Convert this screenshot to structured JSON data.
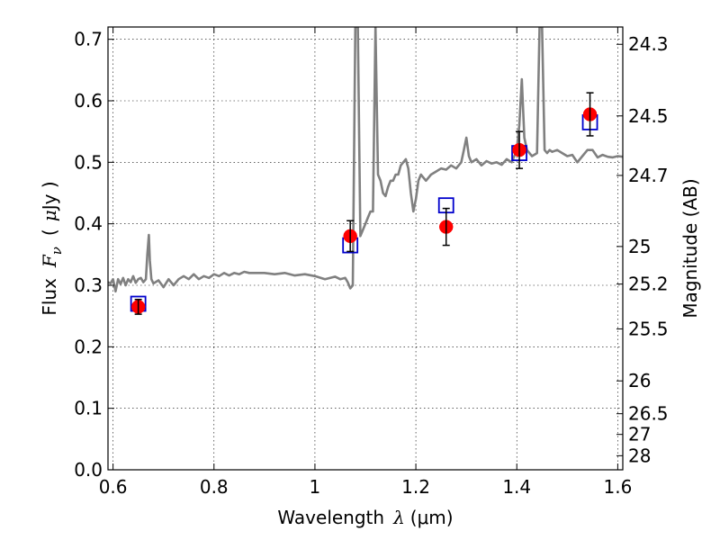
{
  "chart_data": {
    "type": "scatter",
    "x_axis": {
      "label_prefix": "Wavelength",
      "label_symbol": "λ",
      "label_unit": "(μm)",
      "range": [
        0.59,
        1.61
      ],
      "ticks": [
        0.6,
        0.8,
        1.0,
        1.2,
        1.4,
        1.6
      ],
      "tick_labels": [
        "0.6",
        "0.8",
        "1",
        "1.2",
        "1.4",
        "1.6"
      ]
    },
    "y_axis": {
      "label_prefix": "Flux",
      "label_symbol": "F",
      "label_subscript": "ν",
      "label_unit_open": "(",
      "label_unit_mu": "μ",
      "label_unit_rest": "Jy )",
      "range": [
        0.0,
        0.72
      ],
      "ticks": [
        0.0,
        0.1,
        0.2,
        0.3,
        0.4,
        0.5,
        0.6,
        0.7
      ],
      "tick_labels": [
        "0.0",
        "0.1",
        "0.2",
        "0.3",
        "0.4",
        "0.5",
        "0.6",
        "0.7"
      ]
    },
    "y2_axis": {
      "label": "Magnitude (AB)",
      "ticks": [
        24.3,
        24.5,
        24.7,
        25.0,
        25.2,
        25.5,
        26.0,
        26.5,
        27.0,
        28.0
      ],
      "tick_labels": [
        "24.3",
        "24.5",
        "24.7",
        "25",
        "25.2",
        "25.5",
        "26",
        "26.5",
        "27",
        "28"
      ]
    },
    "grid": true,
    "series": [
      {
        "kind": "model-spectrum",
        "color": "#808080",
        "x": [
          0.59,
          0.595,
          0.6,
          0.605,
          0.61,
          0.615,
          0.62,
          0.625,
          0.63,
          0.635,
          0.64,
          0.645,
          0.65,
          0.655,
          0.66,
          0.665,
          0.668,
          0.671,
          0.673,
          0.676,
          0.68,
          0.69,
          0.7,
          0.71,
          0.72,
          0.73,
          0.74,
          0.75,
          0.76,
          0.77,
          0.78,
          0.79,
          0.8,
          0.81,
          0.82,
          0.83,
          0.84,
          0.85,
          0.86,
          0.87,
          0.88,
          0.9,
          0.92,
          0.94,
          0.96,
          0.98,
          1.0,
          1.02,
          1.04,
          1.05,
          1.06,
          1.065,
          1.07,
          1.075,
          1.08,
          1.085,
          1.09,
          1.095,
          1.1,
          1.105,
          1.11,
          1.115,
          1.12,
          1.125,
          1.13,
          1.135,
          1.14,
          1.145,
          1.15,
          1.155,
          1.16,
          1.165,
          1.17,
          1.175,
          1.18,
          1.185,
          1.19,
          1.195,
          1.2,
          1.205,
          1.21,
          1.215,
          1.22,
          1.225,
          1.23,
          1.24,
          1.25,
          1.26,
          1.27,
          1.28,
          1.29,
          1.295,
          1.3,
          1.305,
          1.31,
          1.32,
          1.33,
          1.34,
          1.35,
          1.36,
          1.37,
          1.38,
          1.39,
          1.4,
          1.405,
          1.41,
          1.415,
          1.42,
          1.43,
          1.44,
          1.445,
          1.45,
          1.455,
          1.46,
          1.465,
          1.47,
          1.48,
          1.49,
          1.5,
          1.51,
          1.52,
          1.53,
          1.54,
          1.55,
          1.56,
          1.57,
          1.58,
          1.59,
          1.6,
          1.61
        ],
        "y": [
          0.305,
          0.303,
          0.31,
          0.29,
          0.31,
          0.302,
          0.312,
          0.3,
          0.31,
          0.305,
          0.315,
          0.304,
          0.31,
          0.312,
          0.305,
          0.31,
          0.35,
          0.382,
          0.34,
          0.31,
          0.303,
          0.308,
          0.297,
          0.31,
          0.3,
          0.31,
          0.315,
          0.31,
          0.318,
          0.31,
          0.315,
          0.312,
          0.318,
          0.315,
          0.32,
          0.316,
          0.32,
          0.318,
          0.322,
          0.32,
          0.32,
          0.32,
          0.318,
          0.32,
          0.316,
          0.318,
          0.315,
          0.31,
          0.314,
          0.31,
          0.312,
          0.305,
          0.295,
          0.3,
          0.72,
          0.72,
          0.38,
          0.39,
          0.4,
          0.41,
          0.42,
          0.42,
          0.72,
          0.48,
          0.47,
          0.45,
          0.445,
          0.46,
          0.47,
          0.47,
          0.48,
          0.48,
          0.495,
          0.5,
          0.505,
          0.49,
          0.45,
          0.42,
          0.44,
          0.47,
          0.48,
          0.475,
          0.47,
          0.475,
          0.48,
          0.485,
          0.49,
          0.488,
          0.495,
          0.49,
          0.5,
          0.52,
          0.54,
          0.51,
          0.5,
          0.505,
          0.495,
          0.502,
          0.498,
          0.5,
          0.496,
          0.505,
          0.5,
          0.52,
          0.56,
          0.635,
          0.54,
          0.52,
          0.51,
          0.515,
          0.72,
          0.72,
          0.52,
          0.515,
          0.52,
          0.517,
          0.52,
          0.515,
          0.51,
          0.512,
          0.5,
          0.51,
          0.52,
          0.52,
          0.508,
          0.512,
          0.509,
          0.508,
          0.51,
          0.509
        ]
      },
      {
        "kind": "model-photometry",
        "color": "#0000cc",
        "marker": "open-square",
        "x": [
          0.65,
          1.07,
          1.26,
          1.405,
          1.545
        ],
        "y": [
          0.27,
          0.365,
          0.43,
          0.515,
          0.565
        ]
      },
      {
        "kind": "observed-photometry",
        "color": "#ff0000",
        "marker": "filled-circle",
        "x": [
          0.65,
          1.07,
          1.26,
          1.405,
          1.545
        ],
        "y": [
          0.265,
          0.38,
          0.395,
          0.52,
          0.578
        ],
        "yerr": [
          0.012,
          0.025,
          0.03,
          0.03,
          0.035
        ]
      }
    ]
  }
}
